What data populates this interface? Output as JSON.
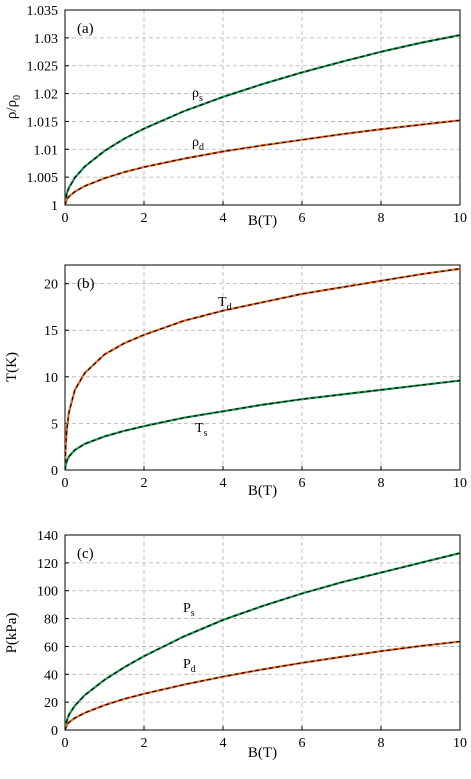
{
  "chart_data": [
    {
      "type": "line",
      "panel_label": "(a)",
      "xlabel": "B(T)",
      "ylabel_main": "ρ/ρ",
      "ylabel_sub": "0",
      "xlim": [
        0,
        10
      ],
      "ylim": [
        1,
        1.035
      ],
      "xticks": [
        0,
        2,
        4,
        6,
        8,
        10
      ],
      "yticks": [
        "1",
        "1.005",
        "1.01",
        "1.015",
        "1.02",
        "1.025",
        "1.03",
        "1.035"
      ],
      "grid": true,
      "colors": {
        "green": "#1a9850",
        "orange": "#e8692a",
        "dashed": "#000000"
      },
      "series": [
        {
          "name": "ρs",
          "label_main": "ρ",
          "label_sub": "s",
          "color": "#1a9850",
          "x": [
            0,
            0.05,
            0.1,
            0.25,
            0.5,
            1,
            1.5,
            2,
            3,
            4,
            5,
            6,
            7,
            8,
            9,
            10
          ],
          "y": [
            1.0,
            1.0022,
            1.0031,
            1.0049,
            1.0069,
            1.0097,
            1.0119,
            1.0137,
            1.0168,
            1.0194,
            1.0217,
            1.0238,
            1.0257,
            1.0275,
            1.0291,
            1.0305
          ]
        },
        {
          "name": "ρd",
          "label_main": "ρ",
          "label_sub": "d",
          "color": "#e8692a",
          "x": [
            0,
            0.05,
            0.1,
            0.25,
            0.5,
            1,
            1.5,
            2,
            3,
            4,
            5,
            6,
            7,
            8,
            9,
            10
          ],
          "y": [
            1.0,
            1.0011,
            1.0015,
            1.0024,
            1.0034,
            1.0048,
            1.0059,
            1.0068,
            1.0083,
            1.0096,
            1.0107,
            1.0117,
            1.0127,
            1.0136,
            1.0144,
            1.0152
          ]
        }
      ]
    },
    {
      "type": "line",
      "panel_label": "(b)",
      "xlabel": "B(T)",
      "ylabel_main": "T(K)",
      "ylabel_sub": "",
      "xlim": [
        0,
        10
      ],
      "ylim": [
        0,
        22
      ],
      "xticks": [
        0,
        2,
        4,
        6,
        8,
        10
      ],
      "yticks": [
        "0",
        "5",
        "10",
        "15",
        "20"
      ],
      "grid": true,
      "colors": {
        "green": "#1a9850",
        "orange": "#e8692a",
        "dashed": "#000000"
      },
      "series": [
        {
          "name": "Td",
          "label_main": "T",
          "label_sub": "d",
          "color": "#e8692a",
          "x": [
            0,
            0.02,
            0.05,
            0.1,
            0.25,
            0.5,
            1,
            1.5,
            2,
            3,
            4,
            5,
            6,
            7,
            8,
            9,
            10
          ],
          "y": [
            0,
            2.8,
            4.5,
            6.2,
            8.6,
            10.4,
            12.4,
            13.6,
            14.5,
            16.0,
            17.1,
            18.0,
            18.9,
            19.6,
            20.3,
            21.0,
            21.6
          ]
        },
        {
          "name": "Ts",
          "label_main": "T",
          "label_sub": "s",
          "color": "#1a9850",
          "x": [
            0,
            0.02,
            0.05,
            0.1,
            0.25,
            0.5,
            1,
            1.5,
            2,
            3,
            4,
            5,
            6,
            7,
            8,
            9,
            10
          ],
          "y": [
            0,
            0.6,
            1.0,
            1.45,
            2.15,
            2.8,
            3.6,
            4.2,
            4.7,
            5.6,
            6.3,
            7.0,
            7.6,
            8.1,
            8.6,
            9.1,
            9.6
          ]
        }
      ]
    },
    {
      "type": "line",
      "panel_label": "(c)",
      "xlabel": "B(T)",
      "ylabel_main": "P(kPa)",
      "ylabel_sub": "",
      "xlim": [
        0,
        10
      ],
      "ylim": [
        0,
        140
      ],
      "xticks": [
        0,
        2,
        4,
        6,
        8,
        10
      ],
      "yticks": [
        "0",
        "20",
        "40",
        "60",
        "80",
        "100",
        "120",
        "140"
      ],
      "grid": true,
      "colors": {
        "green": "#1a9850",
        "orange": "#e8692a",
        "dashed": "#000000"
      },
      "series": [
        {
          "name": "Ps",
          "label_main": "P",
          "label_sub": "s",
          "color": "#1a9850",
          "x": [
            0,
            0.05,
            0.1,
            0.25,
            0.5,
            1,
            1.5,
            2,
            3,
            4,
            5,
            6,
            7,
            8,
            9,
            10
          ],
          "y": [
            0,
            7,
            11,
            17.5,
            25,
            36,
            45,
            53,
            67,
            79,
            89,
            98,
            106,
            113,
            120,
            127
          ]
        },
        {
          "name": "Pd",
          "label_main": "P",
          "label_sub": "d",
          "color": "#e8692a",
          "x": [
            0,
            0.05,
            0.1,
            0.25,
            0.5,
            1,
            1.5,
            2,
            3,
            4,
            5,
            6,
            7,
            8,
            9,
            10
          ],
          "y": [
            0,
            3.5,
            5.5,
            8.6,
            12.3,
            17.8,
            22.3,
            26,
            32.5,
            38.3,
            43.5,
            48.2,
            52.5,
            56.6,
            60.3,
            63.5
          ]
        }
      ]
    }
  ]
}
